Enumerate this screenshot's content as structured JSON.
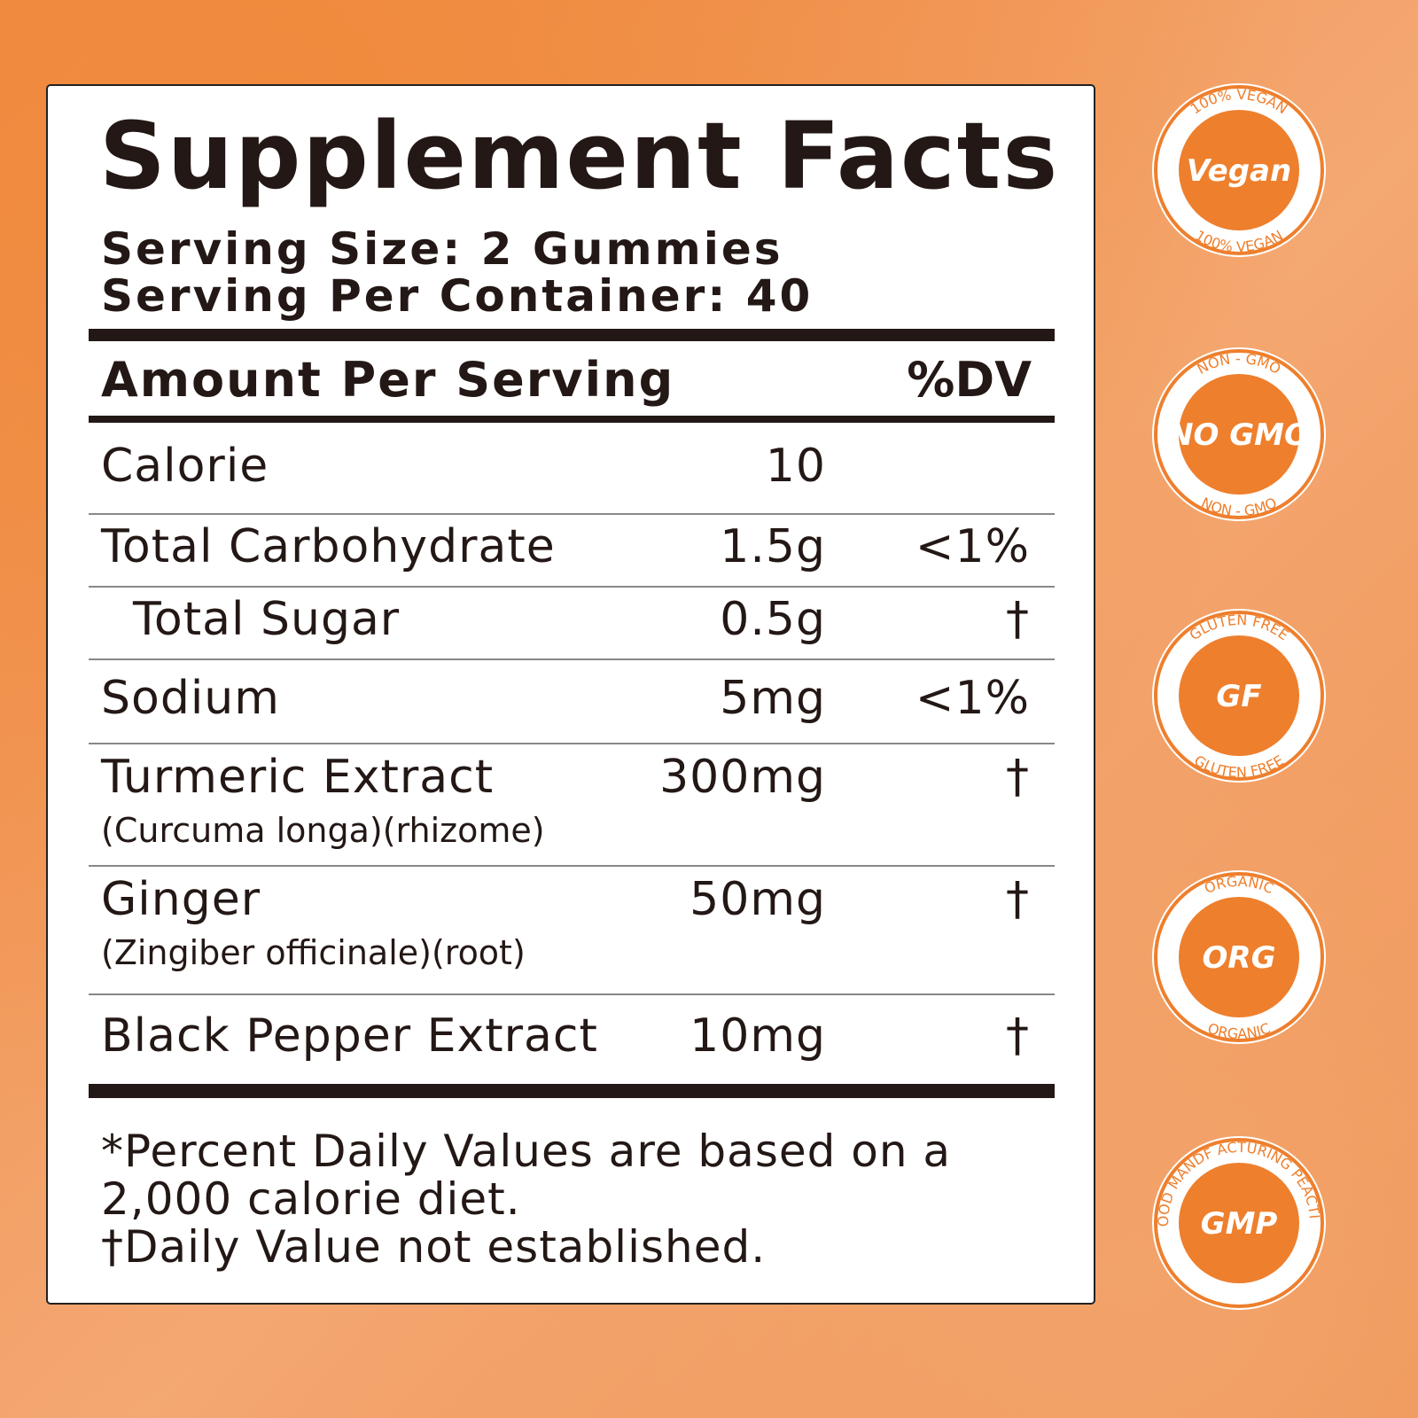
{
  "label": {
    "title": "Supplement Facts",
    "serving_size": "Serving Size: 2 Gummies",
    "servings_per_container": "Serving Per Container: 40",
    "header": {
      "amount": "Amount Per Serving",
      "dv": "%DV"
    },
    "rows": [
      {
        "name": "Calorie",
        "amount": "10"
      },
      {
        "name": "Total Carbohydrate",
        "amount": "1.5g",
        "dv": "<1%"
      },
      {
        "name": "Total Sugar",
        "amount": "0.5g",
        "dv": "†",
        "indent": true
      },
      {
        "name": "Sodium",
        "amount": "5mg",
        "dv": "<1%"
      },
      {
        "name": "Turmeric Extract",
        "sub": "(Curcuma longa)(rhizome)",
        "amount": "300mg",
        "dv": "†"
      },
      {
        "name": "Ginger",
        "sub": "(Zingiber officinale)(root)",
        "amount": "50mg",
        "dv": "†"
      },
      {
        "name": "Black Pepper Extract",
        "amount": "10mg",
        "dv": "†"
      }
    ],
    "footnotes": [
      "*Percent Daily Values are based on a 2,000 calorie diet.",
      "†Daily Value not established."
    ]
  },
  "badges": [
    {
      "ring": "100% VEGAN",
      "ring_bottom": "100% VEGAN",
      "center": "Vegan"
    },
    {
      "ring": "NON - GMO",
      "ring_bottom": "NON - GMO",
      "center": "NO GMO"
    },
    {
      "ring": "GLUTEN FREE",
      "ring_bottom": "GLUTEN FREE",
      "center": "GF"
    },
    {
      "ring": "ORGANIC",
      "ring_bottom": "ORGANIC",
      "center": "ORG"
    },
    {
      "ring": "GOOD MANDF ACTURING PEACTICE",
      "center": "GMP"
    }
  ]
}
